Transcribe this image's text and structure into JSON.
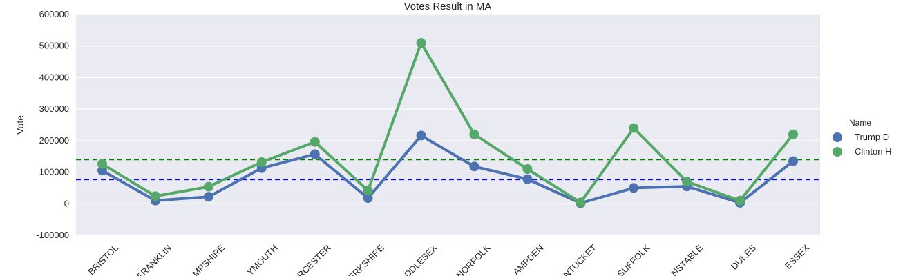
{
  "chart_data": {
    "type": "line",
    "title": "Votes Result in MA",
    "ylabel": "Vote",
    "xlabel": "",
    "ylim": [
      -100000,
      600000
    ],
    "yticks": [
      -100000,
      0,
      100000,
      200000,
      300000,
      400000,
      500000,
      600000
    ],
    "grid": true,
    "categories": [
      "BRISTOL",
      "FRANKLIN",
      "HAMPSHIRE",
      "PLYMOUTH",
      "WORCESTER",
      "BERKSHIRE",
      "MIDDLESEX",
      "NORFOLK",
      "HAMPDEN",
      "NANTUCKET",
      "SUFFOLK",
      "BARNSTABLE",
      "DUKES",
      "ESSEX"
    ],
    "category_labels_visible": [
      "BRISTOL",
      "FRANKLIN",
      "MPSHIRE",
      "YMOUTH",
      "RCESTER",
      "ERKSHIRE",
      "DDLESEX",
      "NORFOLK",
      "AMPDEN",
      "NTUCKET",
      "SUFFOLK",
      "NSTABLE",
      "DUKES",
      "ESSEX"
    ],
    "legend": {
      "title": "Name",
      "placement": "right"
    },
    "series": [
      {
        "name": "Trump D",
        "color": "#4c72b0",
        "values": [
          105000,
          10000,
          22000,
          113000,
          157000,
          18000,
          216000,
          118000,
          78000,
          2000,
          50000,
          55000,
          3000,
          135000
        ],
        "mean": 77000,
        "mean_color": "#0000ff"
      },
      {
        "name": "Clinton H",
        "color": "#55a868",
        "values": [
          126000,
          24000,
          54000,
          132000,
          196000,
          42000,
          510000,
          220000,
          110000,
          4000,
          240000,
          70000,
          10000,
          220000
        ],
        "mean": 140000,
        "mean_color": "#008000"
      }
    ]
  }
}
